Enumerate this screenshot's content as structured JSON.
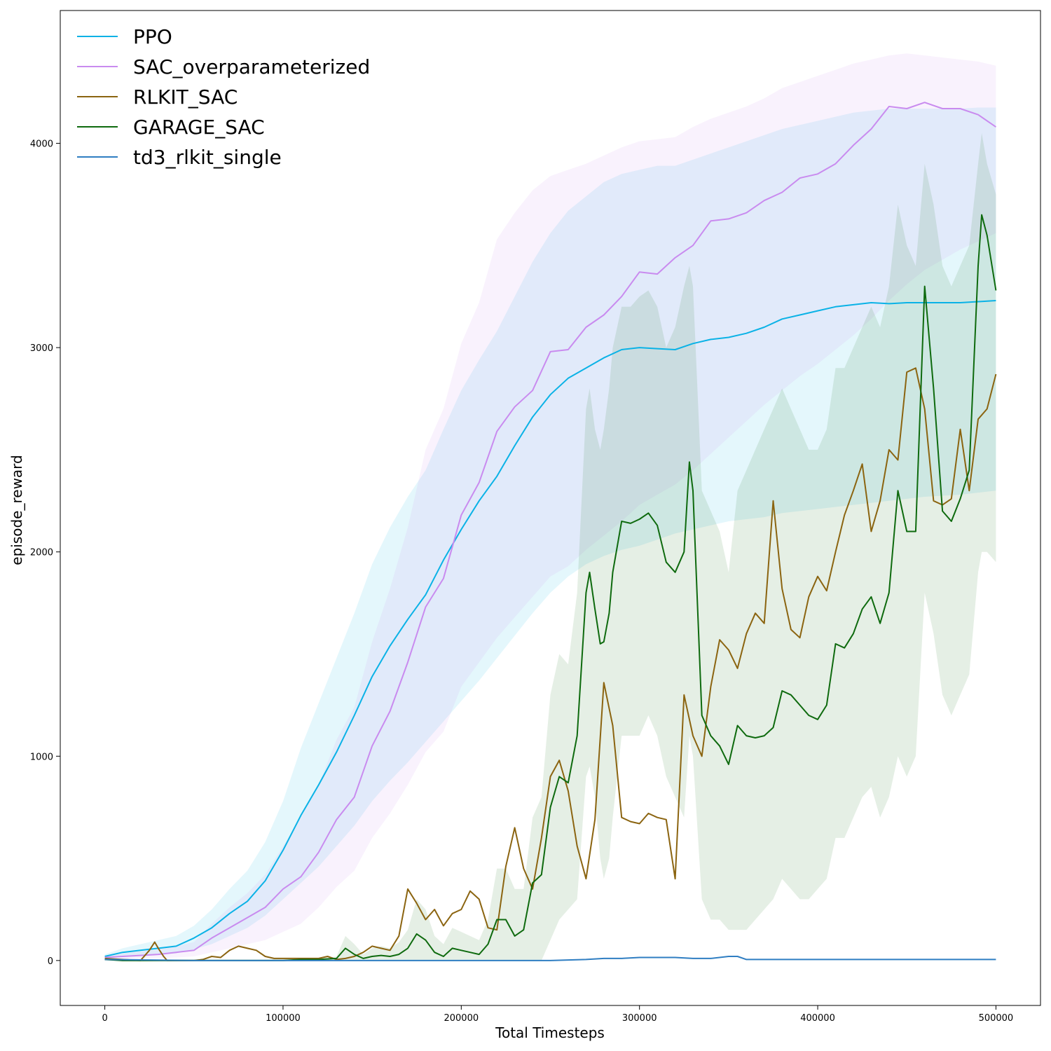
{
  "chart_data": {
    "type": "line",
    "title": "",
    "xlabel": "Total Timesteps",
    "ylabel": "episode_reward",
    "xlim": [
      -25000,
      525000
    ],
    "ylim": [
      -220,
      4650
    ],
    "xticks": [
      0,
      100000,
      200000,
      300000,
      400000,
      500000
    ],
    "yticks": [
      0,
      1000,
      2000,
      3000,
      4000
    ],
    "legend_position": "top-left",
    "grid": false,
    "series": [
      {
        "name": "PPO",
        "color": "#0ab2e6",
        "x": [
          0,
          10000,
          20000,
          30000,
          40000,
          50000,
          60000,
          70000,
          80000,
          90000,
          100000,
          110000,
          120000,
          130000,
          140000,
          150000,
          160000,
          170000,
          180000,
          190000,
          200000,
          210000,
          220000,
          230000,
          240000,
          250000,
          260000,
          270000,
          280000,
          290000,
          300000,
          310000,
          320000,
          330000,
          340000,
          350000,
          360000,
          370000,
          380000,
          390000,
          400000,
          410000,
          420000,
          430000,
          440000,
          450000,
          460000,
          470000,
          480000,
          490000,
          500000
        ],
        "y": [
          20,
          40,
          50,
          60,
          70,
          110,
          160,
          230,
          290,
          390,
          540,
          710,
          860,
          1020,
          1200,
          1390,
          1540,
          1670,
          1790,
          1960,
          2110,
          2250,
          2370,
          2520,
          2660,
          2770,
          2850,
          2900,
          2950,
          2990,
          3000,
          2995,
          2990,
          3020,
          3040,
          3050,
          3070,
          3100,
          3140,
          3160,
          3180,
          3200,
          3210,
          3220,
          3215,
          3220,
          3220,
          3220,
          3220,
          3225,
          3230
        ],
        "lower": [
          10,
          20,
          25,
          30,
          35,
          55,
          80,
          120,
          160,
          220,
          300,
          380,
          460,
          560,
          660,
          780,
          880,
          970,
          1070,
          1170,
          1270,
          1370,
          1480,
          1590,
          1700,
          1800,
          1880,
          1940,
          1980,
          2010,
          2030,
          2060,
          2090,
          2110,
          2130,
          2150,
          2160,
          2170,
          2190,
          2200,
          2210,
          2220,
          2230,
          2240,
          2250,
          2260,
          2270,
          2275,
          2280,
          2290,
          2300
        ],
        "upper": [
          30,
          60,
          80,
          100,
          120,
          170,
          250,
          350,
          440,
          580,
          780,
          1040,
          1260,
          1480,
          1700,
          1940,
          2120,
          2270,
          2400,
          2600,
          2790,
          2940,
          3080,
          3250,
          3420,
          3560,
          3670,
          3740,
          3810,
          3850,
          3870,
          3890,
          3890,
          3920,
          3950,
          3980,
          4010,
          4040,
          4070,
          4090,
          4110,
          4130,
          4150,
          4160,
          4170,
          4170,
          4170,
          4170,
          4170,
          4175,
          4175
        ]
      },
      {
        "name": "SAC_overparameterized",
        "color": "#c98bef",
        "x": [
          0,
          10000,
          20000,
          30000,
          40000,
          50000,
          60000,
          70000,
          80000,
          90000,
          100000,
          110000,
          120000,
          130000,
          140000,
          150000,
          160000,
          170000,
          180000,
          190000,
          200000,
          210000,
          220000,
          230000,
          240000,
          250000,
          260000,
          270000,
          280000,
          290000,
          300000,
          310000,
          320000,
          330000,
          340000,
          350000,
          360000,
          370000,
          380000,
          390000,
          400000,
          410000,
          420000,
          430000,
          440000,
          450000,
          460000,
          470000,
          480000,
          490000,
          500000
        ],
        "y": [
          15,
          20,
          25,
          30,
          40,
          50,
          110,
          160,
          210,
          260,
          350,
          410,
          530,
          690,
          800,
          1050,
          1220,
          1460,
          1730,
          1870,
          2180,
          2340,
          2590,
          2710,
          2790,
          2980,
          2990,
          3100,
          3160,
          3250,
          3370,
          3360,
          3440,
          3500,
          3620,
          3630,
          3660,
          3720,
          3760,
          3830,
          3850,
          3900,
          3990,
          4070,
          4180,
          4170,
          4200,
          4170,
          4170,
          4140,
          4080
        ],
        "lower": [
          5,
          8,
          10,
          12,
          15,
          20,
          40,
          60,
          80,
          100,
          140,
          180,
          260,
          360,
          440,
          600,
          720,
          860,
          1020,
          1120,
          1340,
          1460,
          1580,
          1680,
          1780,
          1880,
          1930,
          2010,
          2080,
          2150,
          2230,
          2280,
          2330,
          2400,
          2480,
          2560,
          2640,
          2720,
          2790,
          2860,
          2920,
          2990,
          3060,
          3140,
          3230,
          3310,
          3380,
          3430,
          3480,
          3520,
          3560
        ],
        "upper": [
          25,
          35,
          45,
          55,
          70,
          90,
          180,
          260,
          330,
          420,
          560,
          700,
          860,
          1080,
          1240,
          1560,
          1820,
          2120,
          2500,
          2700,
          3020,
          3220,
          3530,
          3660,
          3770,
          3840,
          3870,
          3900,
          3940,
          3980,
          4010,
          4020,
          4030,
          4080,
          4120,
          4150,
          4180,
          4220,
          4270,
          4300,
          4330,
          4360,
          4390,
          4410,
          4430,
          4440,
          4430,
          4420,
          4410,
          4400,
          4380
        ]
      },
      {
        "name": "RLKIT_SAC",
        "color": "#8b6410",
        "x": [
          0,
          10000,
          20000,
          25000,
          28000,
          30000,
          33000,
          35000,
          40000,
          50000,
          55000,
          60000,
          65000,
          70000,
          75000,
          80000,
          85000,
          90000,
          95000,
          100000,
          110000,
          120000,
          125000,
          130000,
          135000,
          140000,
          145000,
          150000,
          155000,
          160000,
          165000,
          170000,
          175000,
          180000,
          185000,
          190000,
          195000,
          200000,
          205000,
          210000,
          215000,
          220000,
          225000,
          230000,
          235000,
          240000,
          245000,
          250000,
          255000,
          260000,
          265000,
          270000,
          275000,
          280000,
          285000,
          290000,
          295000,
          300000,
          305000,
          310000,
          315000,
          320000,
          325000,
          330000,
          335000,
          340000,
          345000,
          350000,
          355000,
          360000,
          365000,
          370000,
          375000,
          380000,
          385000,
          390000,
          395000,
          400000,
          405000,
          410000,
          415000,
          420000,
          425000,
          430000,
          435000,
          440000,
          445000,
          450000,
          455000,
          460000,
          465000,
          470000,
          475000,
          480000,
          485000,
          490000,
          495000,
          500000
        ],
        "y": [
          10,
          5,
          0,
          50,
          90,
          60,
          20,
          0,
          0,
          0,
          5,
          20,
          15,
          50,
          70,
          60,
          50,
          20,
          10,
          10,
          10,
          10,
          20,
          5,
          10,
          20,
          40,
          70,
          60,
          50,
          120,
          350,
          280,
          200,
          250,
          170,
          230,
          250,
          340,
          300,
          160,
          150,
          460,
          650,
          450,
          350,
          600,
          900,
          980,
          830,
          560,
          400,
          690,
          1360,
          1150,
          700,
          680,
          670,
          720,
          700,
          690,
          400,
          1300,
          1100,
          1000,
          1340,
          1570,
          1520,
          1430,
          1600,
          1700,
          1650,
          2250,
          1820,
          1620,
          1580,
          1780,
          1880,
          1810,
          2000,
          2180,
          2300,
          2430,
          2100,
          2250,
          2500,
          2450,
          2880,
          2900,
          2700,
          2250,
          2230,
          2260,
          2600,
          2300,
          2650,
          2700,
          2870
        ]
      },
      {
        "name": "GARAGE_SAC",
        "color": "#0e6a0e",
        "x": [
          0,
          10000,
          20000,
          30000,
          40000,
          50000,
          60000,
          70000,
          80000,
          90000,
          100000,
          110000,
          120000,
          130000,
          135000,
          140000,
          145000,
          150000,
          155000,
          160000,
          165000,
          170000,
          175000,
          180000,
          185000,
          190000,
          195000,
          200000,
          205000,
          210000,
          215000,
          220000,
          225000,
          230000,
          235000,
          240000,
          245000,
          250000,
          255000,
          260000,
          265000,
          270000,
          272000,
          275000,
          278000,
          280000,
          283000,
          285000,
          290000,
          295000,
          300000,
          305000,
          310000,
          315000,
          320000,
          325000,
          328000,
          330000,
          335000,
          340000,
          345000,
          350000,
          355000,
          360000,
          365000,
          370000,
          375000,
          380000,
          385000,
          390000,
          395000,
          400000,
          405000,
          410000,
          415000,
          420000,
          425000,
          430000,
          435000,
          440000,
          445000,
          450000,
          455000,
          460000,
          465000,
          470000,
          475000,
          480000,
          485000,
          490000,
          492000,
          495000,
          500000
        ],
        "y": [
          5,
          0,
          0,
          0,
          0,
          0,
          0,
          0,
          0,
          0,
          0,
          5,
          5,
          10,
          60,
          30,
          10,
          20,
          25,
          20,
          30,
          60,
          130,
          100,
          40,
          20,
          60,
          50,
          40,
          30,
          80,
          200,
          200,
          120,
          150,
          380,
          420,
          750,
          900,
          870,
          1100,
          1800,
          1900,
          1720,
          1550,
          1560,
          1700,
          1900,
          2150,
          2140,
          2160,
          2190,
          2130,
          1950,
          1900,
          2000,
          2440,
          2300,
          1200,
          1100,
          1050,
          960,
          1150,
          1100,
          1090,
          1100,
          1140,
          1320,
          1300,
          1250,
          1200,
          1180,
          1250,
          1550,
          1530,
          1600,
          1720,
          1780,
          1650,
          1800,
          2300,
          2100,
          2100,
          3300,
          2800,
          2200,
          2150,
          2260,
          2400,
          3400,
          3650,
          3550,
          3280
        ],
        "lower": [
          0,
          0,
          0,
          0,
          0,
          0,
          0,
          0,
          0,
          0,
          0,
          0,
          0,
          0,
          0,
          0,
          0,
          0,
          0,
          0,
          0,
          0,
          0,
          0,
          0,
          0,
          0,
          0,
          0,
          0,
          0,
          0,
          0,
          0,
          0,
          0,
          0,
          100,
          200,
          250,
          300,
          900,
          950,
          800,
          500,
          400,
          500,
          700,
          1100,
          1100,
          1100,
          1200,
          1100,
          900,
          800,
          700,
          1100,
          1000,
          300,
          200,
          200,
          150,
          150,
          150,
          200,
          250,
          300,
          400,
          350,
          300,
          300,
          350,
          400,
          600,
          600,
          700,
          800,
          850,
          700,
          800,
          1000,
          900,
          1000,
          1800,
          1600,
          1300,
          1200,
          1300,
          1400,
          1900,
          2000,
          2000,
          1950
        ],
        "upper": [
          10,
          5,
          5,
          5,
          5,
          5,
          5,
          5,
          5,
          5,
          5,
          10,
          10,
          20,
          120,
          80,
          30,
          60,
          70,
          60,
          90,
          150,
          300,
          250,
          120,
          80,
          160,
          140,
          120,
          100,
          200,
          450,
          450,
          350,
          350,
          700,
          800,
          1300,
          1500,
          1450,
          1800,
          2700,
          2800,
          2600,
          2500,
          2600,
          2800,
          3000,
          3200,
          3200,
          3250,
          3280,
          3200,
          3000,
          3100,
          3300,
          3400,
          3300,
          2300,
          2200,
          2100,
          1900,
          2300,
          2400,
          2500,
          2600,
          2700,
          2800,
          2700,
          2600,
          2500,
          2500,
          2600,
          2900,
          2900,
          3000,
          3100,
          3200,
          3100,
          3300,
          3700,
          3500,
          3400,
          3900,
          3700,
          3400,
          3300,
          3400,
          3500,
          3900,
          4050,
          3900,
          3750
        ]
      },
      {
        "name": "td3_rlkit_single",
        "color": "#2f7ec2",
        "x": [
          0,
          50000,
          100000,
          150000,
          200000,
          250000,
          270000,
          280000,
          290000,
          300000,
          310000,
          320000,
          330000,
          340000,
          350000,
          355000,
          360000,
          400000,
          450000,
          500000
        ],
        "y": [
          5,
          0,
          0,
          0,
          0,
          0,
          5,
          10,
          10,
          15,
          15,
          15,
          10,
          10,
          20,
          20,
          5,
          5,
          5,
          5
        ]
      }
    ]
  }
}
